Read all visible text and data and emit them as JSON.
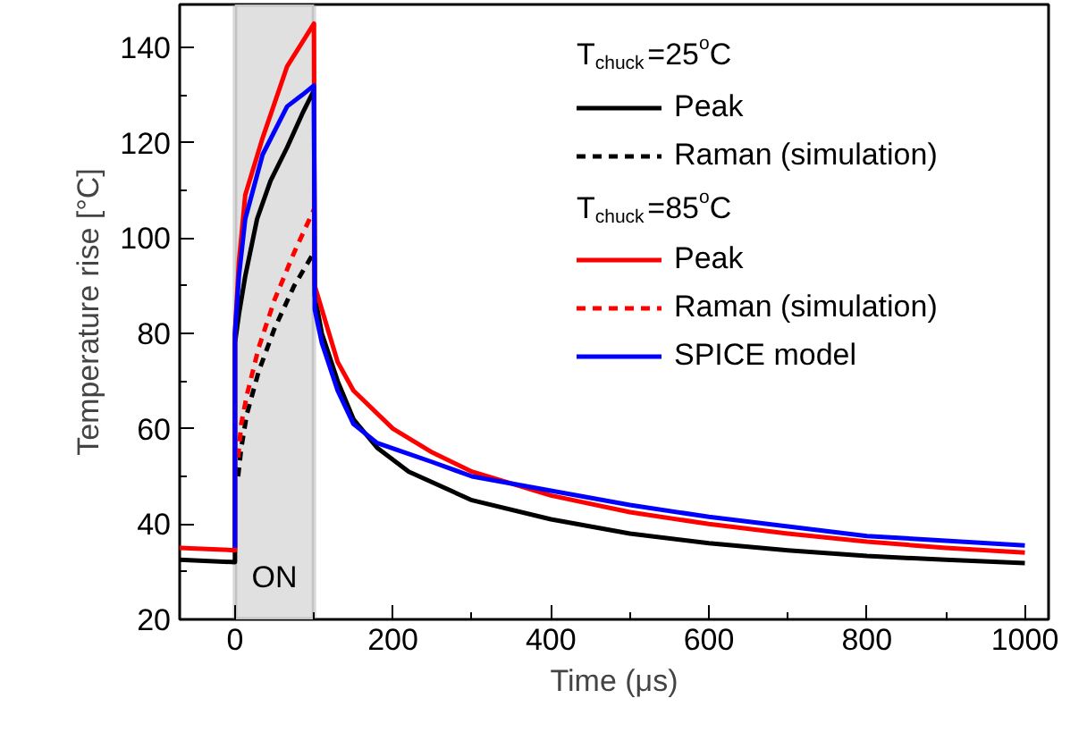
{
  "chart_data": {
    "type": "line",
    "xlabel": "Time (μs)",
    "ylabel": "Temperature rise [°C]",
    "xlim": [
      -70,
      1030
    ],
    "ylim": [
      20,
      149
    ],
    "xticks": [
      0,
      {
        "value": 100,
        "label": null
      },
      200,
      {
        "value": 300,
        "label": null
      },
      400,
      {
        "value": 500,
        "label": null
      },
      600,
      {
        "value": 700,
        "label": null
      },
      800,
      {
        "value": 900,
        "label": null
      },
      1000
    ],
    "yticks": [
      20,
      {
        "value": 30,
        "label": null
      },
      40,
      {
        "value": 50,
        "label": null
      },
      60,
      {
        "value": 70,
        "label": null
      },
      80,
      {
        "value": 90,
        "label": null
      },
      100,
      {
        "value": 110,
        "label": null
      },
      120,
      {
        "value": 130,
        "label": null
      },
      140
    ],
    "grid": false,
    "legend": "top right",
    "annotations": [
      "T$_{chuck}$=25$^{o}$C",
      "T$_{chuck}$=85$^{o}$C"
    ],
    "bands": [
      {
        "axis": "x",
        "from": 0,
        "to": 100,
        "label": "ON",
        "color": "#e0e0e0"
      }
    ],
    "series": [
      {
        "name": "Peak",
        "color": "#000000",
        "line_style": "solid",
        "x": [
          -70,
          0,
          0,
          5,
          13,
          28,
          45,
          66,
          85,
          100,
          101,
          110,
          130,
          150,
          180,
          220,
          300,
          400,
          500,
          600,
          700,
          800,
          900,
          1000
        ],
        "values": [
          32.5,
          32,
          78,
          84,
          92,
          104,
          112,
          119,
          126,
          131,
          88,
          80,
          70,
          62,
          56,
          51,
          45,
          41,
          38,
          36,
          34.5,
          33.3,
          32.5,
          31.8
        ]
      },
      {
        "name": "Raman (simulation)",
        "color": "#000000",
        "line_style": "dashed",
        "x": [
          4,
          8,
          15,
          30,
          50,
          75,
          100
        ],
        "values": [
          50,
          56,
          63,
          72,
          81,
          90,
          97
        ]
      },
      {
        "name": "Peak",
        "color": "#ff0000",
        "line_style": "solid",
        "x": [
          -70,
          0,
          0,
          5,
          13,
          35,
          66,
          85,
          100,
          101,
          110,
          130,
          150,
          200,
          250,
          300,
          400,
          500,
          600,
          700,
          800,
          900,
          1000
        ],
        "values": [
          35,
          34.5,
          80,
          95,
          109,
          121,
          136,
          141,
          145,
          90,
          85,
          74,
          68,
          60,
          55,
          51,
          46,
          42.5,
          40,
          38,
          36.3,
          35,
          34
        ]
      },
      {
        "name": "Raman (simulation)",
        "color": "#ff0000",
        "line_style": "dashed",
        "x": [
          4,
          8,
          15,
          30,
          50,
          75,
          100
        ],
        "values": [
          54,
          61,
          67,
          77,
          87,
          97,
          106
        ]
      },
      {
        "name": "SPICE model",
        "color": "#0000ff",
        "line_style": "solid",
        "x": [
          0,
          0,
          5,
          13,
          35,
          66,
          85,
          100,
          101,
          110,
          130,
          150,
          180,
          250,
          300,
          400,
          500,
          600,
          700,
          800,
          900,
          1000
        ],
        "values": [
          35,
          80,
          92,
          104,
          117.5,
          127.6,
          130,
          132,
          85,
          78,
          68,
          61,
          57,
          53,
          50,
          47,
          44,
          41.5,
          39.5,
          37.5,
          36.5,
          35.5
        ]
      }
    ]
  }
}
